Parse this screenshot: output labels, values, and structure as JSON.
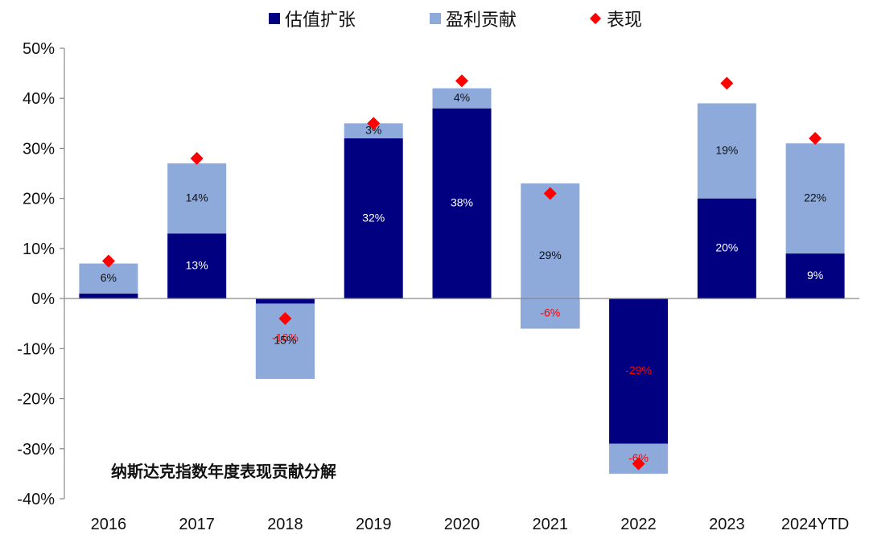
{
  "chart_data": {
    "type": "bar",
    "title": "纳斯达克指数年度表现贡献分解",
    "categories": [
      "2016",
      "2017",
      "2018",
      "2019",
      "2020",
      "2021",
      "2022",
      "2023",
      "2024YTD"
    ],
    "series": [
      {
        "name": "估值扩张",
        "type": "bar",
        "color": "#000080",
        "values": [
          1,
          13,
          -16,
          32,
          38,
          -6,
          -29,
          20,
          9
        ],
        "labels": [
          "",
          "13%",
          "-16%",
          "32%",
          "38%",
          "-6%",
          "-29%",
          "20%",
          "9%"
        ]
      },
      {
        "name": "盈利贡献",
        "type": "bar",
        "color": "#8eaadb",
        "values": [
          6,
          14,
          15,
          3,
          4,
          29,
          -6,
          19,
          22
        ],
        "labels": [
          "6%",
          "14%",
          "15%",
          "3%",
          "4%",
          "29%",
          "-6%",
          "19%",
          "22%"
        ]
      },
      {
        "name": "表现",
        "type": "scatter",
        "marker": "diamond",
        "color": "#ff0000",
        "values": [
          7.5,
          28,
          -4,
          35,
          43.5,
          21,
          -33,
          43,
          32
        ]
      }
    ],
    "ylim": [
      -40,
      50
    ],
    "yticks": [
      -40,
      -30,
      -20,
      -10,
      0,
      10,
      20,
      30,
      40,
      50
    ],
    "ytick_labels": [
      "-40%",
      "-30%",
      "-20%",
      "-10%",
      "0%",
      "10%",
      "20%",
      "30%",
      "40%",
      "50%"
    ],
    "legend_position": "top",
    "grid": false
  }
}
